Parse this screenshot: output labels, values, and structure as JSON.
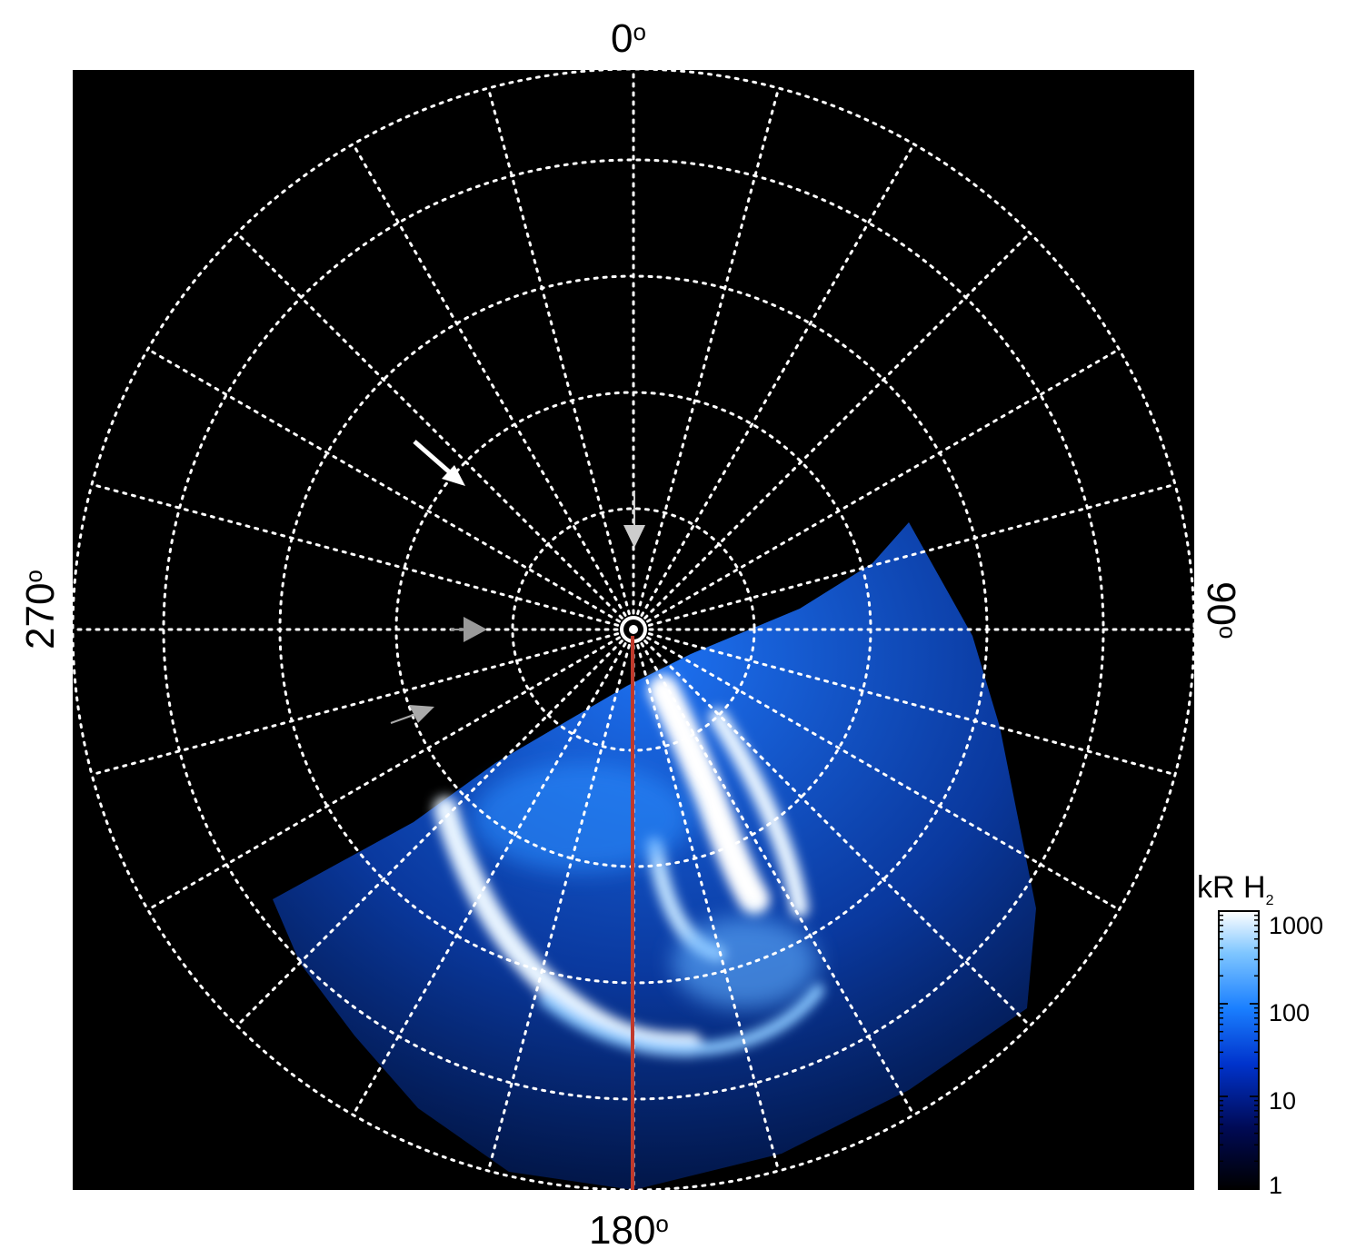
{
  "axes": {
    "top": "0",
    "right": "90",
    "bottom": "180",
    "left": "270",
    "degree_symbol": "o"
  },
  "colorbar": {
    "title_main": "kR H",
    "title_sub": "2",
    "ticks": [
      "1000",
      "100",
      "10",
      "1"
    ],
    "scale": "log",
    "range": [
      1,
      1000
    ],
    "colors": [
      "#000000",
      "#000a55",
      "#0033cc",
      "#1a7fff",
      "#7fc6ff",
      "#ffffff"
    ]
  },
  "colors": {
    "background": "#000000",
    "grid": "#ffffff",
    "meridian_line": "#c0392b",
    "arrow_primary": "#ffffff",
    "arrow_secondary": "#aaaaaa"
  },
  "grid": {
    "style": "dotted",
    "rings": 5,
    "meridians": 24
  }
}
